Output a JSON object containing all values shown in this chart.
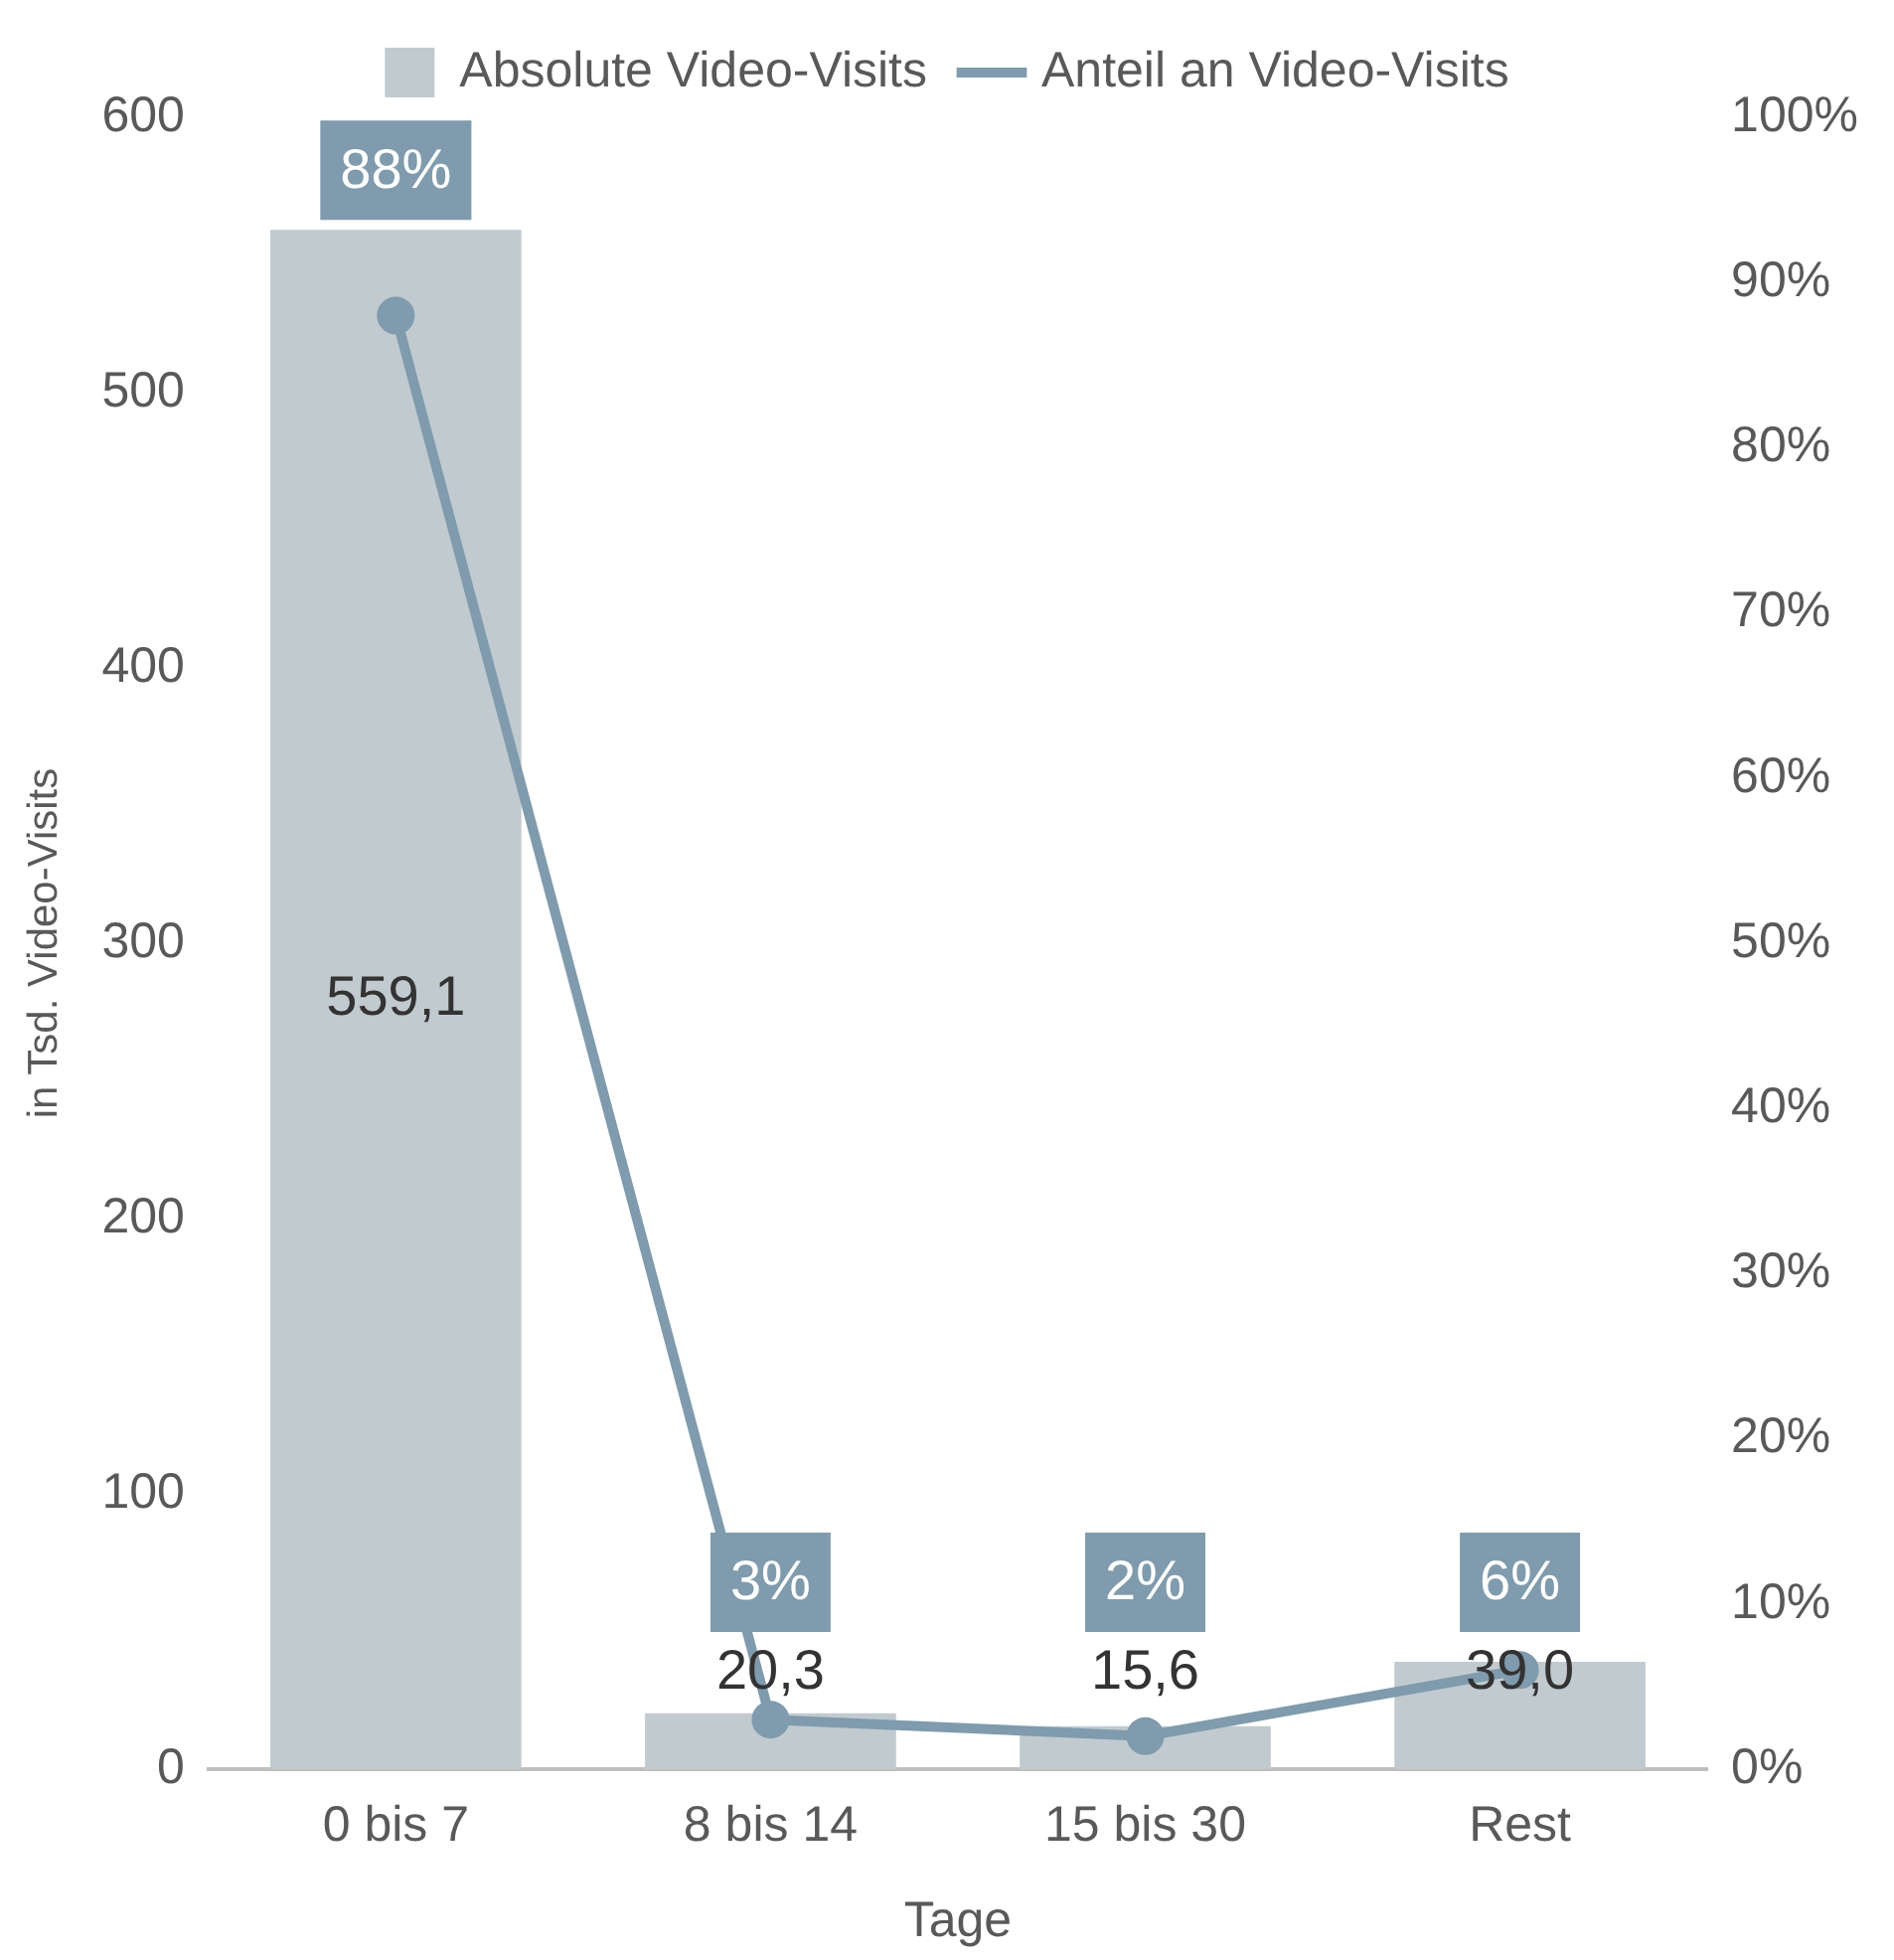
{
  "chart_data": {
    "type": "bar",
    "categories": [
      "0 bis 7",
      "8 bis 14",
      "15 bis 30",
      "Rest"
    ],
    "series": [
      {
        "name": "Absolute Video-Visits",
        "color": "#c1cacf",
        "values": [
          559.1,
          20.3,
          15.6,
          39.0
        ],
        "value_labels": [
          "559,1",
          "20,3",
          "15,6",
          "39,0"
        ]
      },
      {
        "name": "Anteil an Video-Visits",
        "type": "line",
        "axis": "y2",
        "color": "#7f9bad",
        "values": [
          88,
          3,
          2,
          6
        ],
        "value_labels": [
          "88%",
          "3%",
          "2%",
          "6%"
        ]
      }
    ],
    "xlabel": "Tage",
    "ylabel": "in Tsd. Video-Visits",
    "ylim": [
      0,
      600
    ],
    "yticks": [
      0,
      100,
      200,
      300,
      400,
      500,
      600
    ],
    "y2lim": [
      0,
      100
    ],
    "y2ticks": [
      {
        "value": 0,
        "label": "0%"
      },
      {
        "value": 10,
        "label": "10%"
      },
      {
        "value": 20,
        "label": "20%"
      },
      {
        "value": 30,
        "label": "30%"
      },
      {
        "value": 40,
        "label": "40%"
      },
      {
        "value": 50,
        "label": "50%"
      },
      {
        "value": 60,
        "label": "60%"
      },
      {
        "value": 70,
        "label": "70%"
      },
      {
        "value": 80,
        "label": "80%"
      },
      {
        "value": 90,
        "label": "90%"
      },
      {
        "value": 100,
        "label": "100%"
      }
    ],
    "grid": false,
    "legend": "top",
    "marker": "circle",
    "line_style": "solid"
  }
}
